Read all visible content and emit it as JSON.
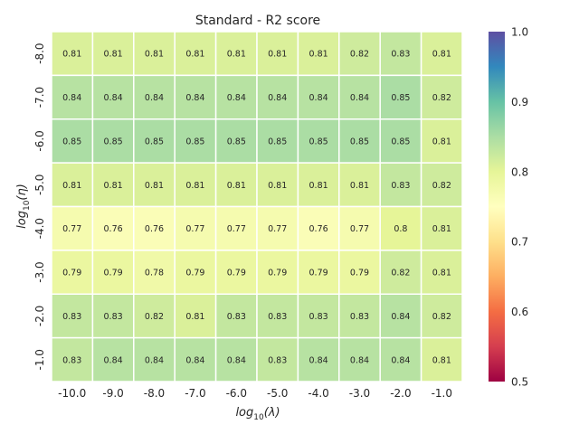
{
  "chart_data": {
    "type": "heatmap",
    "title": "Standard - R2 score",
    "xlabel": {
      "base": "log",
      "sub": "10",
      "var": "(λ)"
    },
    "ylabel": {
      "base": "log",
      "sub": "10",
      "var": "(η)"
    },
    "x_ticks": [
      "-10.0",
      "-9.0",
      "-8.0",
      "-7.0",
      "-6.0",
      "-5.0",
      "-4.0",
      "-3.0",
      "-2.0",
      "-1.0"
    ],
    "y_ticks": [
      "-8.0",
      "-7.0",
      "-6.0",
      "-5.0",
      "-4.0",
      "-3.0",
      "-2.0",
      "-1.0"
    ],
    "values": [
      [
        0.81,
        0.81,
        0.81,
        0.81,
        0.81,
        0.81,
        0.81,
        0.82,
        0.83,
        0.81
      ],
      [
        0.84,
        0.84,
        0.84,
        0.84,
        0.84,
        0.84,
        0.84,
        0.84,
        0.85,
        0.82
      ],
      [
        0.85,
        0.85,
        0.85,
        0.85,
        0.85,
        0.85,
        0.85,
        0.85,
        0.85,
        0.81
      ],
      [
        0.81,
        0.81,
        0.81,
        0.81,
        0.81,
        0.81,
        0.81,
        0.81,
        0.83,
        0.82
      ],
      [
        0.77,
        0.76,
        0.76,
        0.77,
        0.77,
        0.77,
        0.76,
        0.77,
        0.8,
        0.81
      ],
      [
        0.79,
        0.79,
        0.78,
        0.79,
        0.79,
        0.79,
        0.79,
        0.79,
        0.82,
        0.81
      ],
      [
        0.83,
        0.83,
        0.82,
        0.81,
        0.83,
        0.83,
        0.83,
        0.83,
        0.84,
        0.82
      ],
      [
        0.83,
        0.84,
        0.84,
        0.84,
        0.84,
        0.83,
        0.84,
        0.84,
        0.84,
        0.81
      ]
    ],
    "colorbar": {
      "vmin": 0.5,
      "vmax": 1.0,
      "colormap": "Spectral",
      "ticks": [
        "0.5",
        "0.6",
        "0.7",
        "0.8",
        "0.9",
        "1.0"
      ]
    }
  }
}
